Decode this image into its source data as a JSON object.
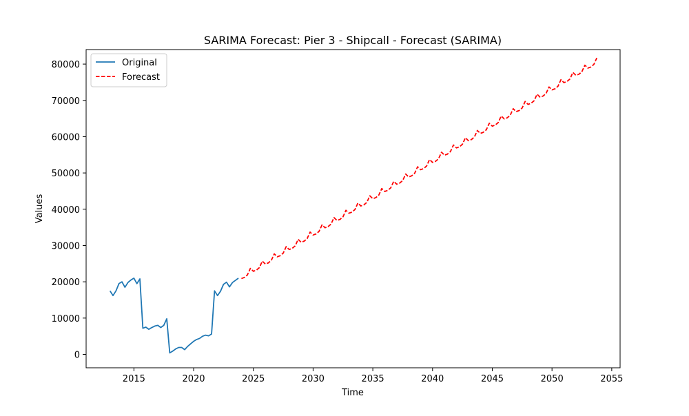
{
  "chart_data": {
    "type": "line",
    "title": "SARIMA Forecast: Pier 3 - Shipcall - Forecast (SARIMA)",
    "xlabel": "Time",
    "ylabel": "Values",
    "xlim": [
      2011.0,
      2055.7
    ],
    "ylim": [
      -3700,
      84000
    ],
    "x_ticks": [
      2015,
      2020,
      2025,
      2030,
      2035,
      2040,
      2045,
      2050,
      2055
    ],
    "y_ticks": [
      0,
      10000,
      20000,
      30000,
      40000,
      50000,
      60000,
      70000,
      80000
    ],
    "legend": {
      "placement": "top-left",
      "entries": [
        "Original",
        "Forecast"
      ]
    },
    "grid": false,
    "series": [
      {
        "name": "Original",
        "color": "#1f77b4",
        "style": "solid",
        "points": [
          [
            2013.0,
            17500
          ],
          [
            2013.25,
            16200
          ],
          [
            2013.5,
            17500
          ],
          [
            2013.75,
            19500
          ],
          [
            2014.0,
            20000
          ],
          [
            2014.25,
            18500
          ],
          [
            2014.5,
            19800
          ],
          [
            2014.75,
            20500
          ],
          [
            2015.0,
            21000
          ],
          [
            2015.25,
            19500
          ],
          [
            2015.5,
            20800
          ],
          [
            2015.75,
            7200
          ],
          [
            2016.0,
            7500
          ],
          [
            2016.25,
            6900
          ],
          [
            2016.5,
            7400
          ],
          [
            2016.75,
            7800
          ],
          [
            2017.0,
            8000
          ],
          [
            2017.25,
            7400
          ],
          [
            2017.5,
            8000
          ],
          [
            2017.75,
            9800
          ],
          [
            2018.0,
            400
          ],
          [
            2018.25,
            900
          ],
          [
            2018.5,
            1500
          ],
          [
            2018.75,
            1900
          ],
          [
            2019.0,
            1900
          ],
          [
            2019.25,
            1300
          ],
          [
            2019.5,
            2200
          ],
          [
            2019.75,
            2900
          ],
          [
            2020.0,
            3600
          ],
          [
            2020.25,
            4100
          ],
          [
            2020.5,
            4400
          ],
          [
            2020.75,
            5000
          ],
          [
            2021.0,
            5300
          ],
          [
            2021.25,
            5100
          ],
          [
            2021.5,
            5600
          ],
          [
            2021.75,
            17500
          ],
          [
            2022.0,
            16200
          ],
          [
            2022.25,
            17400
          ],
          [
            2022.5,
            19300
          ],
          [
            2022.75,
            19900
          ],
          [
            2023.0,
            18600
          ],
          [
            2023.25,
            19800
          ],
          [
            2023.5,
            20400
          ],
          [
            2023.75,
            21000
          ]
        ]
      },
      {
        "name": "Forecast",
        "color": "#ff0000",
        "style": "dashed",
        "trend": {
          "x_start": 2024.0,
          "x_end": 2053.75,
          "step": 0.25,
          "start_value": 20900,
          "annual_increase": 2000,
          "seasonal": [
            0,
            -200,
            0,
            1300
          ]
        }
      }
    ]
  }
}
